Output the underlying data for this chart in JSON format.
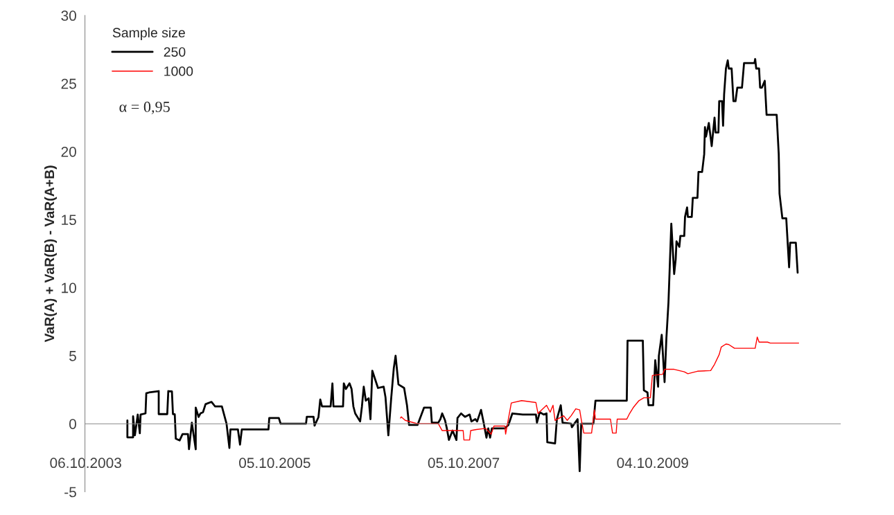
{
  "chart_data": {
    "type": "line",
    "ylabel": "VaR(A) + VaR(B) - VaR(A+B)",
    "legend_title": "Sample size",
    "annotations": [
      "α = 0,95"
    ],
    "xlim": [
      "2003-10-03",
      "2011-09-29"
    ],
    "xticks": [
      {
        "value": "2003-10-06",
        "label": "06.10.2003"
      },
      {
        "value": "2005-10-05",
        "label": "05.10.2005"
      },
      {
        "value": "2007-10-05",
        "label": "05.10.2007"
      },
      {
        "value": "2009-10-04",
        "label": "04.10.2009"
      }
    ],
    "ylim": [
      -5,
      30
    ],
    "yticks": [
      -5,
      0,
      5,
      10,
      15,
      20,
      25,
      30
    ],
    "grid": false,
    "legend": "top left",
    "line_style": "solid",
    "marker": "none",
    "series": [
      {
        "name": "250",
        "color": "#000000",
        "x": [
          "2004-03-15",
          "2004-03-15",
          "2004-04-06",
          "2004-04-06",
          "2004-04-13",
          "2004-04-24",
          "2004-05-02",
          "2004-05-05",
          "2004-05-24",
          "2004-05-27",
          "2004-06-07",
          "2004-07-14",
          "2004-07-14",
          "2004-08-16",
          "2004-08-20",
          "2004-09-03",
          "2004-09-07",
          "2004-09-14",
          "2004-09-18",
          "2004-10-03",
          "2004-10-14",
          "2004-11-04",
          "2004-11-08",
          "2004-11-19",
          "2004-12-04",
          "2004-12-04",
          "2004-12-15",
          "2004-12-22",
          "2005-01-01",
          "2005-01-11",
          "2005-02-03",
          "2005-02-17",
          "2005-03-15",
          "2005-04-02",
          "2005-04-13",
          "2005-04-17",
          "2005-05-16",
          "2005-05-24",
          "2005-05-31",
          "2005-09-11",
          "2005-09-14",
          "2005-10-21",
          "2005-10-28",
          "2006-02-03",
          "2006-02-06",
          "2006-03-04",
          "2006-03-08",
          "2006-03-23",
          "2006-03-30",
          "2006-04-06",
          "2006-05-09",
          "2006-05-16",
          "2006-05-20",
          "2006-06-26",
          "2006-06-29",
          "2006-07-07",
          "2006-07-21",
          "2006-07-29",
          "2006-08-05",
          "2006-08-12",
          "2006-08-31",
          "2006-09-07",
          "2006-09-14",
          "2006-09-22",
          "2006-10-03",
          "2006-10-10",
          "2006-10-17",
          "2006-11-08",
          "2006-11-30",
          "2006-12-07",
          "2006-12-18",
          "2006-12-29",
          "2007-01-08",
          "2007-01-15",
          "2007-01-26",
          "2007-02-17",
          "2007-02-28",
          "2007-03-08",
          "2007-04-10",
          "2007-05-05",
          "2007-05-31",
          "2007-06-04",
          "2007-06-29",
          "2007-07-07",
          "2007-07-14",
          "2007-07-25",
          "2007-08-01",
          "2007-08-09",
          "2007-08-23",
          "2007-09-07",
          "2007-09-11",
          "2007-09-25",
          "2007-10-10",
          "2007-10-28",
          "2007-11-04",
          "2007-11-19",
          "2007-11-26",
          "2007-12-11",
          "2007-12-22",
          "2008-01-01",
          "2008-01-08",
          "2008-01-15",
          "2008-01-22",
          "2008-03-12",
          "2008-03-26",
          "2008-04-10",
          "2008-05-20",
          "2008-07-10",
          "2008-07-14",
          "2008-07-25",
          "2008-08-09",
          "2008-08-20",
          "2008-08-23",
          "2008-09-22",
          "2008-09-29",
          "2008-10-14",
          "2008-10-21",
          "2008-11-23",
          "2008-11-26",
          "2008-12-18",
          "2008-12-26",
          "2009-01-01",
          "2009-02-17",
          "2009-02-25",
          "2009-06-26",
          "2009-06-29",
          "2009-08-27",
          "2009-08-31",
          "2009-09-14",
          "2009-09-18",
          "2009-10-06",
          "2009-10-14",
          "2009-10-25",
          "2009-10-28",
          "2009-11-08",
          "2009-11-19",
          "2009-11-26",
          "2009-12-04",
          "2009-12-15",
          "2009-12-26",
          "2010-01-01",
          "2010-01-04",
          "2010-01-15",
          "2010-01-19",
          "2010-02-03",
          "2010-02-06",
          "2010-02-14",
          "2010-02-17",
          "2010-03-04",
          "2010-03-08",
          "2010-03-26",
          "2010-03-30",
          "2010-04-13",
          "2010-04-21",
          "2010-04-24",
          "2010-04-28",
          "2010-05-09",
          "2010-05-20",
          "2010-05-31",
          "2010-06-04",
          "2010-06-15",
          "2010-06-18",
          "2010-06-29",
          "2010-07-03",
          "2010-07-07",
          "2010-07-14",
          "2010-07-21",
          "2010-07-25",
          "2010-08-05",
          "2010-08-12",
          "2010-08-20",
          "2010-08-27",
          "2010-09-14",
          "2010-09-22",
          "2010-11-01",
          "2010-11-04",
          "2010-11-08",
          "2010-11-19",
          "2010-11-23",
          "2010-11-30",
          "2010-12-11",
          "2010-12-18",
          "2011-01-26",
          "2011-02-03",
          "2011-02-06",
          "2011-02-17",
          "2011-03-04",
          "2011-03-15",
          "2011-03-19",
          "2011-04-10",
          "2011-04-17"
        ],
        "values": [
          0.25,
          -1.0,
          -1.0,
          0.55,
          -0.85,
          0.68,
          -0.7,
          0.68,
          0.76,
          2.24,
          2.3,
          2.4,
          0.71,
          0.71,
          2.4,
          2.38,
          0.71,
          0.7,
          -1.1,
          -1.22,
          -0.76,
          -0.76,
          -1.87,
          0.08,
          -1.87,
          1.19,
          0.5,
          0.76,
          0.85,
          1.44,
          1.61,
          1.27,
          1.27,
          0,
          -1.78,
          -0.42,
          -0.42,
          -1.53,
          -0.42,
          -0.42,
          0.42,
          0.42,
          0,
          0,
          0.51,
          0.51,
          -0.14,
          0.48,
          1.78,
          1.27,
          1.27,
          2.97,
          1.27,
          1.27,
          2.97,
          2.55,
          2.97,
          2.55,
          1.27,
          0.76,
          0.17,
          1.27,
          2.72,
          1.7,
          1.87,
          0.34,
          3.9,
          2.63,
          2.72,
          1.95,
          -0.85,
          1.87,
          4.07,
          5.0,
          2.89,
          2.63,
          1.36,
          -0.08,
          -0.08,
          1.19,
          1.19,
          0.08,
          0.08,
          0.34,
          0.76,
          0.25,
          -0.34,
          -1.19,
          -0.5,
          -1.19,
          0.42,
          0.76,
          0.51,
          0.68,
          0.17,
          0.34,
          0.17,
          1.02,
          0,
          -1.02,
          -0.34,
          -1.02,
          -0.34,
          -0.34,
          -0.08,
          0.76,
          0.68,
          0.68,
          0.08,
          0.85,
          0.68,
          0.76,
          -1.36,
          -1.44,
          0.34,
          1.36,
          0.08,
          0,
          -0.25,
          0.34,
          -3.48,
          0,
          0,
          1.7,
          1.7,
          6.11,
          6.11,
          2.46,
          2.3,
          1.36,
          1.36,
          4.67,
          2.72,
          5.0,
          6.54,
          3.06,
          6.28,
          8.9,
          14.7,
          11.0,
          12.1,
          13.4,
          13.0,
          13.8,
          13.8,
          15.2,
          15.9,
          15.2,
          15.2,
          16.6,
          16.6,
          18.5,
          18.5,
          19.8,
          21.8,
          21.1,
          22.1,
          20.4,
          22.5,
          21.4,
          21.4,
          23.7,
          23.7,
          21.9,
          24.2,
          26.1,
          26.7,
          26.1,
          26.1,
          23.7,
          23.7,
          24.7,
          24.7,
          26.5,
          26.5,
          26.8,
          26.1,
          26.1,
          24.7,
          24.7,
          25.2,
          22.7,
          22.7,
          19.8,
          16.9,
          15.1,
          15.1,
          11.5,
          13.3,
          13.3,
          11.1
        ]
      },
      {
        "name": "1000",
        "color": "#ff0000",
        "x": [
          "2007-02-03",
          "2007-02-06",
          "2007-02-21",
          "2007-04-10",
          "2007-06-29",
          "2007-07-14",
          "2007-10-03",
          "2007-10-06",
          "2007-10-28",
          "2007-11-01",
          "2007-11-23",
          "2007-12-29",
          "2008-01-19",
          "2008-01-30",
          "2008-03-12",
          "2008-03-15",
          "2008-03-23",
          "2008-04-06",
          "2008-05-16",
          "2008-07-10",
          "2008-07-18",
          "2008-08-20",
          "2008-09-03",
          "2008-09-14",
          "2008-09-22",
          "2008-10-25",
          "2008-11-08",
          "2008-11-23",
          "2008-12-11",
          "2008-12-26",
          "2009-01-01",
          "2009-01-11",
          "2009-02-10",
          "2009-02-21",
          "2009-02-25",
          "2009-04-24",
          "2009-05-02",
          "2009-05-16",
          "2009-05-20",
          "2009-06-26",
          "2009-07-07",
          "2009-07-21",
          "2009-08-12",
          "2009-08-31",
          "2009-09-25",
          "2009-10-03",
          "2009-11-12",
          "2009-11-19",
          "2009-12-26",
          "2010-02-03",
          "2010-02-17",
          "2010-03-26",
          "2010-05-16",
          "2010-05-31",
          "2010-06-18",
          "2010-06-26",
          "2010-07-14",
          "2010-07-25",
          "2010-08-16",
          "2010-11-04",
          "2010-11-12",
          "2010-11-19",
          "2010-12-22",
          "2011-01-01",
          "2011-04-21"
        ],
        "values": [
          0.42,
          0.51,
          0.25,
          0,
          0,
          -0.5,
          -0.5,
          -1.19,
          -1.19,
          -0.5,
          -0.42,
          -0.34,
          -0.76,
          -0.17,
          -0.17,
          -0.76,
          0.08,
          1.53,
          1.7,
          1.56,
          0.76,
          1.36,
          0.85,
          1.36,
          0.25,
          0.59,
          0.25,
          0.59,
          1.1,
          1.02,
          0.34,
          -0.68,
          -0.68,
          1.02,
          0.34,
          0.34,
          -0.68,
          -0.68,
          0.34,
          0.34,
          0.76,
          1.19,
          1.7,
          1.91,
          1.91,
          3.55,
          3.64,
          4.0,
          4.0,
          3.82,
          3.68,
          3.86,
          3.91,
          4.37,
          5.09,
          5.64,
          5.86,
          5.82,
          5.55,
          5.55,
          6.37,
          6.0,
          6.0,
          5.93,
          5.93
        ]
      }
    ]
  }
}
